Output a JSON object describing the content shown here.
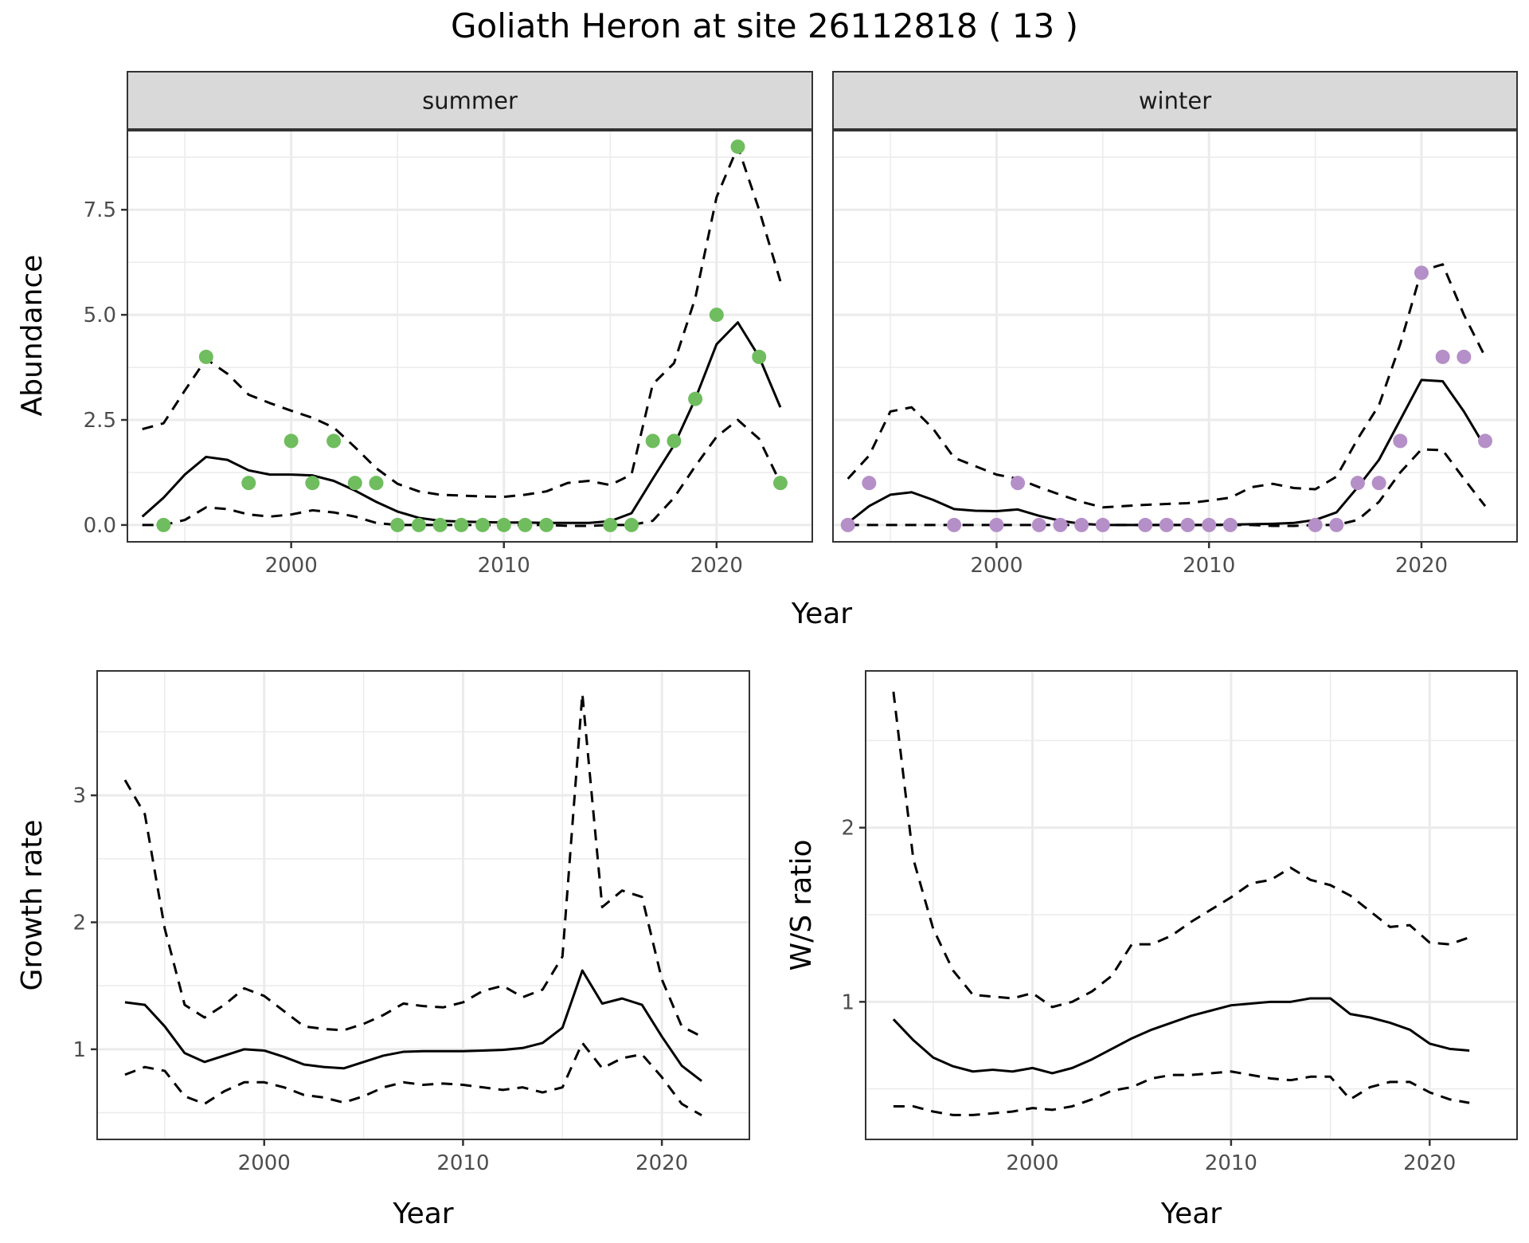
{
  "title": "Goliath Heron at site 26112818 ( 13 )",
  "colors": {
    "summer_points": "#6fbd5e",
    "winter_points": "#b58fc8",
    "line": "#000000",
    "grid": "#ebebeb",
    "strip_bg": "#d9d9d9",
    "frame": "#333333"
  },
  "chart_data": [
    {
      "type": "line",
      "panel": "summer",
      "strip": "summer",
      "xlabel": "Year",
      "ylabel": "Abundance",
      "xlim": [
        1992.3,
        2024.5
      ],
      "ylim": [
        -0.4,
        9.4
      ],
      "xticks": [
        2000,
        2010,
        2020
      ],
      "xtick_labels": [
        "2000",
        "2010",
        "2020"
      ],
      "yticks": [
        0,
        2.5,
        5,
        7.5
      ],
      "ytick_labels": [
        "0.0",
        "2.5",
        "5.0",
        "7.5"
      ],
      "x": [
        1993,
        1994,
        1995,
        1996,
        1997,
        1998,
        1999,
        2000,
        2001,
        2002,
        2003,
        2004,
        2005,
        2006,
        2007,
        2008,
        2009,
        2010,
        2011,
        2012,
        2013,
        2014,
        2015,
        2016,
        2017,
        2018,
        2019,
        2020,
        2021,
        2022,
        2023
      ],
      "series": [
        {
          "name": "estimate",
          "style": "solid",
          "values": [
            0.2,
            0.65,
            1.2,
            1.62,
            1.55,
            1.3,
            1.2,
            1.2,
            1.18,
            1.05,
            0.82,
            0.55,
            0.32,
            0.17,
            0.1,
            0.08,
            0.07,
            0.06,
            0.06,
            0.05,
            0.05,
            0.05,
            0.09,
            0.28,
            1.1,
            1.9,
            3.0,
            4.3,
            4.82,
            4.0,
            2.8
          ]
        },
        {
          "name": "upper",
          "style": "dashed",
          "values": [
            2.28,
            2.42,
            3.2,
            3.95,
            3.6,
            3.1,
            2.9,
            2.72,
            2.55,
            2.32,
            1.85,
            1.35,
            0.98,
            0.8,
            0.72,
            0.7,
            0.68,
            0.67,
            0.72,
            0.8,
            1.0,
            1.05,
            0.95,
            1.2,
            3.35,
            3.85,
            5.4,
            7.8,
            9.0,
            7.5,
            5.8
          ]
        },
        {
          "name": "lower",
          "style": "dashed",
          "values": [
            0.0,
            0.0,
            0.12,
            0.42,
            0.38,
            0.25,
            0.2,
            0.25,
            0.35,
            0.3,
            0.2,
            0.05,
            0.0,
            0.0,
            0.0,
            0.0,
            0.0,
            0.0,
            0.0,
            0.0,
            -0.02,
            -0.02,
            0.0,
            0.0,
            0.1,
            0.65,
            1.4,
            2.1,
            2.5,
            2.05,
            1.0
          ]
        }
      ],
      "points": {
        "x": [
          1994,
          1996,
          1998,
          2000,
          2001,
          2002,
          2003,
          2004,
          2005,
          2006,
          2007,
          2008,
          2009,
          2010,
          2011,
          2012,
          2015,
          2016,
          2017,
          2018,
          2019,
          2020,
          2021,
          2022,
          2023
        ],
        "y": [
          0,
          4,
          1,
          2,
          1,
          2,
          1,
          1,
          0,
          0,
          0,
          0,
          0,
          0,
          0,
          0,
          0,
          0,
          2,
          2,
          3,
          5,
          9,
          4,
          1
        ]
      }
    },
    {
      "type": "line",
      "panel": "winter",
      "strip": "winter",
      "xlabel": "Year",
      "ylabel": "Abundance",
      "xlim": [
        1992.3,
        2024.5
      ],
      "ylim": [
        -0.4,
        9.4
      ],
      "xticks": [
        2000,
        2010,
        2020
      ],
      "xtick_labels": [
        "2000",
        "2010",
        "2020"
      ],
      "x": [
        1993,
        1994,
        1995,
        1996,
        1997,
        1998,
        1999,
        2000,
        2001,
        2002,
        2003,
        2004,
        2005,
        2006,
        2007,
        2008,
        2009,
        2010,
        2011,
        2012,
        2013,
        2014,
        2015,
        2016,
        2017,
        2018,
        2019,
        2020,
        2021,
        2022,
        2023
      ],
      "series": [
        {
          "name": "estimate",
          "style": "solid",
          "values": [
            0.05,
            0.45,
            0.72,
            0.78,
            0.6,
            0.38,
            0.34,
            0.33,
            0.37,
            0.22,
            0.1,
            0.03,
            0.0,
            0.0,
            0.0,
            0.0,
            0.0,
            0.0,
            0.01,
            0.02,
            0.03,
            0.05,
            0.12,
            0.3,
            0.9,
            1.55,
            2.5,
            3.45,
            3.42,
            2.7,
            1.85
          ]
        },
        {
          "name": "upper",
          "style": "dashed",
          "values": [
            1.1,
            1.65,
            2.7,
            2.8,
            2.3,
            1.6,
            1.4,
            1.2,
            1.1,
            0.9,
            0.72,
            0.55,
            0.42,
            0.45,
            0.48,
            0.5,
            0.52,
            0.58,
            0.65,
            0.9,
            0.98,
            0.88,
            0.85,
            1.15,
            2.05,
            2.85,
            4.3,
            6.05,
            6.2,
            5.0,
            4.0
          ]
        },
        {
          "name": "lower",
          "style": "dashed",
          "values": [
            0.0,
            0.0,
            0.0,
            0.0,
            0.0,
            0.0,
            0.0,
            0.0,
            0.0,
            0.0,
            0.0,
            0.0,
            0.0,
            0.0,
            0.0,
            0.0,
            0.0,
            0.0,
            0.0,
            0.0,
            -0.02,
            -0.02,
            0.0,
            0.0,
            0.12,
            0.55,
            1.25,
            1.8,
            1.78,
            1.1,
            0.45
          ]
        }
      ],
      "points": {
        "x": [
          1993,
          1994,
          1998,
          2000,
          2001,
          2002,
          2003,
          2004,
          2005,
          2007,
          2008,
          2009,
          2010,
          2011,
          2015,
          2016,
          2017,
          2018,
          2019,
          2020,
          2021,
          2022,
          2023
        ],
        "y": [
          0,
          1,
          0,
          0,
          1,
          0,
          0,
          0,
          0,
          0,
          0,
          0,
          0,
          0,
          0,
          0,
          1,
          1,
          2,
          6,
          4,
          4,
          2
        ]
      }
    },
    {
      "type": "line",
      "panel": "growth",
      "xlabel": "Year",
      "ylabel": "Growth rate",
      "xlim": [
        1991.6,
        2024.4
      ],
      "ylim": [
        0.29,
        3.98
      ],
      "xticks": [
        2000,
        2010,
        2020
      ],
      "xtick_labels": [
        "2000",
        "2010",
        "2020"
      ],
      "yticks": [
        1,
        2,
        3
      ],
      "ytick_labels": [
        "1",
        "2",
        "3"
      ],
      "x": [
        1993,
        1994,
        1995,
        1996,
        1997,
        1998,
        1999,
        2000,
        2001,
        2002,
        2003,
        2004,
        2005,
        2006,
        2007,
        2008,
        2009,
        2010,
        2011,
        2012,
        2013,
        2014,
        2015,
        2016,
        2017,
        2018,
        2019,
        2020,
        2021,
        2022
      ],
      "series": [
        {
          "name": "estimate",
          "style": "solid",
          "values": [
            1.37,
            1.35,
            1.18,
            0.97,
            0.9,
            0.95,
            1.0,
            0.99,
            0.94,
            0.88,
            0.86,
            0.85,
            0.9,
            0.95,
            0.98,
            0.985,
            0.985,
            0.985,
            0.99,
            0.995,
            1.01,
            1.05,
            1.17,
            1.62,
            1.36,
            1.4,
            1.35,
            1.1,
            0.87,
            0.75
          ]
        },
        {
          "name": "upper",
          "style": "dashed",
          "values": [
            3.12,
            2.85,
            1.95,
            1.35,
            1.25,
            1.35,
            1.48,
            1.42,
            1.3,
            1.18,
            1.16,
            1.15,
            1.2,
            1.27,
            1.36,
            1.34,
            1.33,
            1.37,
            1.46,
            1.5,
            1.41,
            1.47,
            1.73,
            3.8,
            2.12,
            2.25,
            2.2,
            1.55,
            1.18,
            1.1
          ]
        },
        {
          "name": "lower",
          "style": "dashed",
          "values": [
            0.8,
            0.86,
            0.83,
            0.63,
            0.57,
            0.67,
            0.74,
            0.74,
            0.7,
            0.64,
            0.62,
            0.58,
            0.63,
            0.7,
            0.74,
            0.72,
            0.73,
            0.72,
            0.7,
            0.68,
            0.7,
            0.66,
            0.7,
            1.05,
            0.85,
            0.93,
            0.96,
            0.78,
            0.57,
            0.48
          ]
        }
      ]
    },
    {
      "type": "line",
      "panel": "ws_ratio",
      "xlabel": "Year",
      "ylabel": "W/S ratio",
      "xlim": [
        1991.6,
        2024.4
      ],
      "ylim": [
        0.21,
        2.9
      ],
      "xticks": [
        2000,
        2010,
        2020
      ],
      "xtick_labels": [
        "2000",
        "2010",
        "2020"
      ],
      "yticks": [
        1,
        2
      ],
      "ytick_labels": [
        "1",
        "2"
      ],
      "x": [
        1993,
        1994,
        1995,
        1996,
        1997,
        1998,
        1999,
        2000,
        2001,
        2002,
        2003,
        2004,
        2005,
        2006,
        2007,
        2008,
        2009,
        2010,
        2011,
        2012,
        2013,
        2014,
        2015,
        2016,
        2017,
        2018,
        2019,
        2020,
        2021,
        2022
      ],
      "series": [
        {
          "name": "estimate",
          "style": "solid",
          "values": [
            0.9,
            0.78,
            0.68,
            0.63,
            0.6,
            0.61,
            0.6,
            0.62,
            0.59,
            0.62,
            0.67,
            0.73,
            0.79,
            0.84,
            0.88,
            0.92,
            0.95,
            0.98,
            0.99,
            1.0,
            1.0,
            1.02,
            1.02,
            0.93,
            0.91,
            0.88,
            0.84,
            0.76,
            0.73,
            0.72
          ]
        },
        {
          "name": "upper",
          "style": "dashed",
          "values": [
            2.78,
            1.82,
            1.42,
            1.18,
            1.04,
            1.03,
            1.02,
            1.05,
            0.97,
            1.0,
            1.06,
            1.15,
            1.33,
            1.33,
            1.38,
            1.46,
            1.53,
            1.6,
            1.68,
            1.7,
            1.77,
            1.7,
            1.67,
            1.61,
            1.52,
            1.43,
            1.44,
            1.34,
            1.33,
            1.37
          ]
        },
        {
          "name": "lower",
          "style": "dashed",
          "values": [
            0.4,
            0.4,
            0.37,
            0.35,
            0.35,
            0.36,
            0.37,
            0.39,
            0.38,
            0.4,
            0.44,
            0.49,
            0.51,
            0.56,
            0.58,
            0.58,
            0.59,
            0.6,
            0.58,
            0.56,
            0.55,
            0.57,
            0.57,
            0.44,
            0.51,
            0.54,
            0.54,
            0.48,
            0.44,
            0.42
          ]
        }
      ]
    }
  ]
}
